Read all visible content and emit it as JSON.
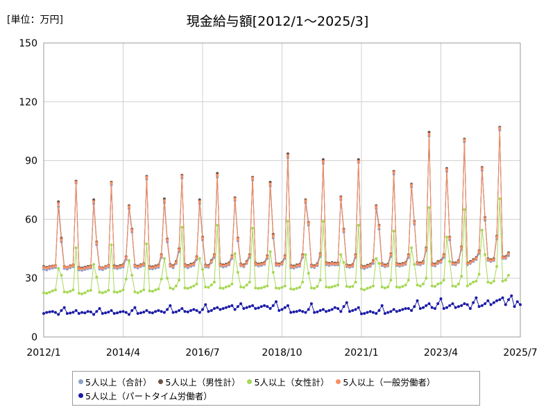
{
  "unit_label": "[単位：万円]",
  "chart_data": {
    "type": "line",
    "title": "現金給与額[2012/1～2025/3]",
    "ylim": [
      0,
      150
    ],
    "yticks": [
      "0",
      "30",
      "60",
      "90",
      "120",
      "150"
    ],
    "xtick_labels": [
      "2012/1",
      "2014/4",
      "2016/7",
      "2018/10",
      "2021/1",
      "2023/4",
      "2025/7"
    ],
    "x_start": "2012/1",
    "grid": true,
    "legend_position": "bottom",
    "series": [
      {
        "name": "5人以上（合計）",
        "color": "#8DA0CB",
        "values": [
          34.5,
          34.2,
          34.8,
          35.1,
          35.4,
          66.5,
          48.5,
          35.0,
          34.6,
          35.3,
          35.8,
          78.5,
          34.2,
          34.0,
          34.4,
          34.8,
          35.1,
          68.0,
          47.0,
          34.6,
          34.3,
          35.0,
          35.6,
          77.5,
          35.2,
          34.9,
          35.3,
          35.7,
          39.5,
          65.5,
          53.5,
          35.6,
          35.2,
          35.9,
          36.4,
          80.5,
          34.8,
          34.7,
          35.1,
          35.5,
          40.5,
          68.5,
          48.5,
          36.0,
          35.3,
          37.5,
          43.5,
          81.0,
          35.8,
          35.3,
          36.0,
          36.5,
          39.5,
          68.0,
          49.5,
          35.7,
          35.5,
          38.0,
          40.5,
          81.5,
          36.2,
          35.7,
          36.1,
          36.8,
          40.0,
          69.5,
          49.0,
          36.3,
          35.8,
          37.5,
          40.5,
          80.0,
          36.7,
          36.2,
          36.5,
          37.0,
          40.0,
          77.0,
          50.5,
          36.5,
          36.3,
          37.0,
          40.0,
          91.5,
          35.3,
          35.1,
          35.7,
          36.0,
          40.5,
          68.5,
          57.0,
          35.7,
          35.4,
          36.4,
          41.0,
          88.5,
          36.8,
          36.5,
          36.9,
          36.7,
          36.7,
          70.0,
          53.5,
          35.8,
          35.5,
          35.9,
          40.5,
          89.0,
          35.2,
          34.9,
          35.5,
          36.0,
          37.5,
          65.5,
          55.0,
          36.4,
          35.8,
          36.2,
          41.0,
          83.0,
          36.4,
          36.1,
          36.5,
          37.0,
          40.5,
          76.5,
          57.5,
          37.0,
          36.8,
          37.5,
          44.0,
          102.5,
          36.5,
          36.2,
          37.5,
          38.0,
          40.5,
          84.5,
          49.5,
          37.0,
          36.8,
          38.0,
          44.5,
          99.5,
          36.8,
          37.5,
          38.5,
          39.5,
          42.5,
          85.0,
          59.5,
          39.0,
          38.5,
          39.0,
          50.0,
          105.5,
          40.0,
          40.0,
          41.5
        ]
      },
      {
        "name": "5人以上（男性計）",
        "color": "#6B5344",
        "values": [
          36.0,
          35.5,
          36.0,
          36.2,
          36.5,
          69.0,
          50.5,
          36.0,
          35.6,
          36.3,
          36.8,
          79.5,
          35.5,
          35.2,
          35.6,
          36.0,
          36.3,
          70.0,
          48.5,
          35.6,
          35.3,
          36.0,
          36.6,
          79.0,
          36.4,
          36.0,
          36.5,
          36.9,
          41.0,
          67.0,
          55.0,
          36.6,
          36.2,
          36.9,
          37.4,
          82.0,
          36.0,
          35.8,
          36.3,
          36.7,
          42.0,
          70.5,
          50.0,
          37.0,
          36.4,
          38.5,
          45.0,
          82.5,
          37.0,
          36.5,
          37.2,
          37.6,
          41.0,
          70.0,
          51.0,
          36.8,
          36.5,
          39.0,
          42.0,
          83.5,
          37.3,
          36.8,
          37.2,
          37.8,
          41.5,
          71.0,
          50.5,
          37.3,
          36.8,
          38.5,
          42.0,
          81.5,
          37.8,
          37.3,
          37.6,
          38.0,
          41.5,
          79.0,
          52.5,
          37.5,
          37.3,
          38.0,
          41.5,
          93.5,
          36.5,
          36.2,
          36.8,
          37.1,
          42.0,
          70.0,
          58.5,
          36.7,
          36.4,
          37.4,
          42.5,
          90.5,
          38.0,
          37.6,
          38.0,
          37.7,
          37.8,
          71.5,
          55.0,
          36.8,
          36.5,
          36.9,
          42.0,
          90.5,
          36.3,
          36.0,
          36.6,
          37.1,
          39.0,
          67.0,
          57.0,
          37.5,
          36.8,
          37.2,
          42.5,
          84.5,
          37.5,
          37.2,
          37.5,
          38.0,
          42.0,
          78.0,
          59.0,
          38.0,
          37.8,
          38.5,
          45.5,
          104.5,
          37.5,
          37.3,
          38.5,
          39.0,
          42.0,
          86.0,
          51.0,
          38.0,
          37.8,
          39.0,
          46.0,
          101.0,
          37.8,
          38.5,
          39.5,
          40.5,
          44.0,
          86.5,
          61.0,
          40.0,
          39.5,
          40.0,
          51.5,
          107.0,
          41.0,
          41.0,
          43.0
        ]
      },
      {
        "name": "5人以上（女性計）",
        "color": "#A6D854",
        "values": [
          22.5,
          22.3,
          22.8,
          23.5,
          24.0,
          35.0,
          31.5,
          23.0,
          22.8,
          23.3,
          24.0,
          45.5,
          22.3,
          22.0,
          22.5,
          23.5,
          23.8,
          37.0,
          30.5,
          22.8,
          22.5,
          23.0,
          23.8,
          47.0,
          23.0,
          22.8,
          23.3,
          24.0,
          29.5,
          39.0,
          31.5,
          23.0,
          22.5,
          23.2,
          24.0,
          47.5,
          23.5,
          23.3,
          24.0,
          24.5,
          29.5,
          40.0,
          30.0,
          25.0,
          24.5,
          26.0,
          29.0,
          56.0,
          25.0,
          24.8,
          25.3,
          26.0,
          27.0,
          40.0,
          34.5,
          25.5,
          25.3,
          26.5,
          28.0,
          57.0,
          25.0,
          24.8,
          25.5,
          26.0,
          27.0,
          42.5,
          33.0,
          25.5,
          25.3,
          26.5,
          28.0,
          55.5,
          25.0,
          24.8,
          25.0,
          25.5,
          26.0,
          43.5,
          33.0,
          25.0,
          24.8,
          25.3,
          26.0,
          59.0,
          24.5,
          24.3,
          24.8,
          25.3,
          28.0,
          42.0,
          32.5,
          25.0,
          24.8,
          25.8,
          29.0,
          59.0,
          25.5,
          25.3,
          25.5,
          26.0,
          26.5,
          42.0,
          38.0,
          25.8,
          25.5,
          25.8,
          28.0,
          57.0,
          24.5,
          24.0,
          24.8,
          25.3,
          26.0,
          40.0,
          37.5,
          25.5,
          25.0,
          25.5,
          29.0,
          54.0,
          25.5,
          25.3,
          25.8,
          26.5,
          29.0,
          45.5,
          37.0,
          26.5,
          26.0,
          27.0,
          30.0,
          66.0,
          26.0,
          25.8,
          27.0,
          27.5,
          29.0,
          51.0,
          38.5,
          26.0,
          25.8,
          27.0,
          31.0,
          65.0,
          26.0,
          27.0,
          28.0,
          28.5,
          32.0,
          54.5,
          42.0,
          28.0,
          27.5,
          28.5,
          36.0,
          70.5,
          28.5,
          29.0,
          31.5
        ]
      },
      {
        "name": "5人以上（一般労働者）",
        "color": "#FC8D62",
        "values": [
          35.5,
          35.1,
          35.6,
          35.9,
          36.2,
          68.0,
          49.5,
          35.7,
          35.4,
          36.0,
          36.5,
          79.0,
          35.0,
          34.7,
          35.1,
          35.5,
          35.8,
          69.0,
          48.0,
          35.3,
          35.0,
          35.7,
          36.3,
          78.5,
          35.8,
          35.5,
          36.0,
          36.4,
          40.5,
          66.5,
          54.5,
          36.2,
          35.8,
          36.5,
          37.0,
          81.5,
          35.5,
          35.3,
          35.8,
          36.2,
          41.5,
          69.5,
          49.5,
          36.5,
          35.9,
          38.0,
          44.5,
          82.0,
          36.5,
          36.0,
          36.7,
          37.1,
          40.5,
          69.0,
          50.5,
          36.3,
          36.0,
          38.5,
          41.5,
          82.5,
          36.8,
          36.3,
          36.7,
          37.3,
          41.0,
          70.5,
          50.0,
          36.8,
          36.3,
          38.0,
          41.5,
          81.0,
          37.3,
          36.8,
          37.1,
          37.5,
          41.0,
          78.0,
          51.5,
          37.0,
          36.8,
          37.5,
          41.0,
          92.5,
          36.0,
          35.7,
          36.3,
          36.6,
          41.5,
          69.5,
          58.0,
          36.2,
          35.9,
          36.9,
          42.0,
          89.5,
          37.5,
          37.1,
          37.5,
          37.2,
          37.3,
          71.0,
          54.5,
          36.3,
          36.0,
          36.4,
          41.5,
          89.5,
          35.8,
          35.5,
          36.1,
          36.6,
          38.5,
          66.5,
          56.5,
          37.0,
          36.3,
          36.7,
          42.0,
          84.0,
          37.0,
          36.7,
          37.0,
          37.5,
          41.5,
          77.5,
          58.5,
          37.5,
          37.3,
          38.0,
          45.0,
          103.5,
          37.0,
          36.8,
          38.0,
          38.5,
          41.5,
          85.5,
          50.5,
          37.5,
          37.3,
          38.5,
          45.5,
          100.5,
          37.3,
          38.0,
          39.0,
          40.0,
          43.5,
          86.0,
          60.5,
          39.5,
          39.0,
          39.5,
          51.0,
          106.5,
          40.5,
          40.5,
          42.5
        ]
      },
      {
        "name": "5人以上（パートタイム労働者）",
        "color": "#1A1AA6",
        "values": [
          12.0,
          12.5,
          12.8,
          13.0,
          12.5,
          11.5,
          13.5,
          15.0,
          12.0,
          12.2,
          12.6,
          13.5,
          12.0,
          12.5,
          12.3,
          13.0,
          12.8,
          11.5,
          13.0,
          14.5,
          12.0,
          12.3,
          12.7,
          13.5,
          12.0,
          12.3,
          12.8,
          13.0,
          12.5,
          11.5,
          13.5,
          15.0,
          12.0,
          12.3,
          12.7,
          13.5,
          12.5,
          12.3,
          13.0,
          13.5,
          13.0,
          12.5,
          14.0,
          16.0,
          12.5,
          12.8,
          13.5,
          14.5,
          13.0,
          12.8,
          13.5,
          14.0,
          13.5,
          12.5,
          14.0,
          16.5,
          13.0,
          13.5,
          14.5,
          15.0,
          14.0,
          14.5,
          15.0,
          15.5,
          16.0,
          14.0,
          15.5,
          17.0,
          14.5,
          15.0,
          15.5,
          16.0,
          14.5,
          14.8,
          15.5,
          16.0,
          15.5,
          14.5,
          16.0,
          18.0,
          13.5,
          14.0,
          15.0,
          16.0,
          12.5,
          12.8,
          13.0,
          13.5,
          13.0,
          12.5,
          14.0,
          17.0,
          12.5,
          12.8,
          13.5,
          14.0,
          13.0,
          13.5,
          14.0,
          15.0,
          14.5,
          13.0,
          15.5,
          17.5,
          13.0,
          13.5,
          14.0,
          15.0,
          11.8,
          12.0,
          12.5,
          13.0,
          12.5,
          12.0,
          13.5,
          16.0,
          12.0,
          12.5,
          13.0,
          14.0,
          13.0,
          13.5,
          14.0,
          14.5,
          14.5,
          13.5,
          15.5,
          18.5,
          14.5,
          15.0,
          16.0,
          17.0,
          15.0,
          14.5,
          17.0,
          19.5,
          14.5,
          15.0,
          16.0,
          17.0,
          15.0,
          15.5,
          16.0,
          17.0,
          16.5,
          14.5,
          17.5,
          20.0,
          15.5,
          16.0,
          17.0,
          18.5,
          16.5,
          17.5,
          18.5,
          19.0,
          20.0,
          16.5,
          19.0,
          21.0,
          15.5,
          18.0,
          16.5
        ]
      }
    ]
  }
}
